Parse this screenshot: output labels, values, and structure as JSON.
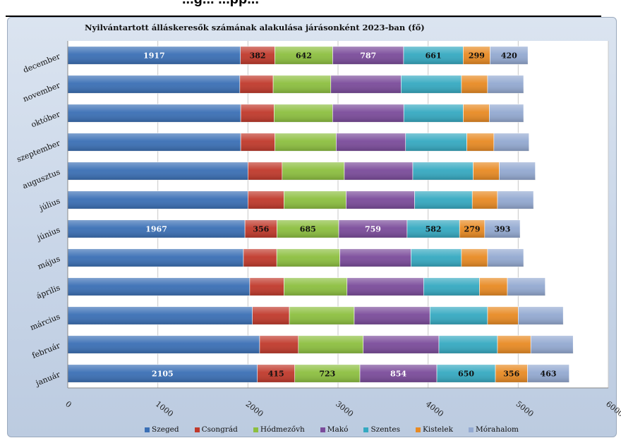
{
  "header": {
    "partial_title": "...g...                                   ...pp..."
  },
  "chart_data": {
    "type": "bar",
    "orientation": "horizontal",
    "stacked": true,
    "title": "Nyilvántartott álláskeresők számának alakulása járásonként 2023-ban (fő)",
    "xlabel": "",
    "ylabel": "",
    "xlim": [
      0,
      6000
    ],
    "xticks": [
      "0",
      "1000",
      "2000",
      "3000",
      "4000",
      "5000",
      "6000"
    ],
    "grid": true,
    "legend_position": "bottom",
    "categories": [
      "január",
      "február",
      "március",
      "április",
      "május",
      "június",
      "július",
      "augusztus",
      "szeptember",
      "október",
      "november",
      "december"
    ],
    "series": [
      {
        "name": "Szeged",
        "color": "#3a6fb5",
        "values": [
          2105,
          2130,
          2050,
          2020,
          1950,
          1967,
          2000,
          2000,
          1920,
          1920,
          1910,
          1917
        ]
      },
      {
        "name": "Csongrád",
        "color": "#c0392b",
        "values": [
          415,
          430,
          410,
          380,
          370,
          356,
          400,
          380,
          380,
          370,
          370,
          382
        ]
      },
      {
        "name": "Hódmezővh",
        "color": "#8cbf3f",
        "values": [
          723,
          720,
          720,
          700,
          700,
          685,
          690,
          690,
          680,
          650,
          640,
          642
        ]
      },
      {
        "name": "Makó",
        "color": "#7a4b9a",
        "values": [
          854,
          840,
          840,
          850,
          790,
          759,
          760,
          760,
          770,
          790,
          780,
          787
        ]
      },
      {
        "name": "Szentes",
        "color": "#35a9c1",
        "values": [
          650,
          650,
          640,
          620,
          560,
          582,
          640,
          670,
          680,
          660,
          670,
          661
        ]
      },
      {
        "name": "Kistelek",
        "color": "#e88a23",
        "values": [
          356,
          370,
          340,
          310,
          290,
          279,
          280,
          290,
          300,
          290,
          290,
          299
        ]
      },
      {
        "name": "Mórahalom",
        "color": "#93a9d1",
        "values": [
          463,
          470,
          500,
          420,
          400,
          393,
          400,
          400,
          390,
          380,
          400,
          420
        ]
      }
    ],
    "labeled_categories": [
      "január",
      "június",
      "december"
    ]
  }
}
